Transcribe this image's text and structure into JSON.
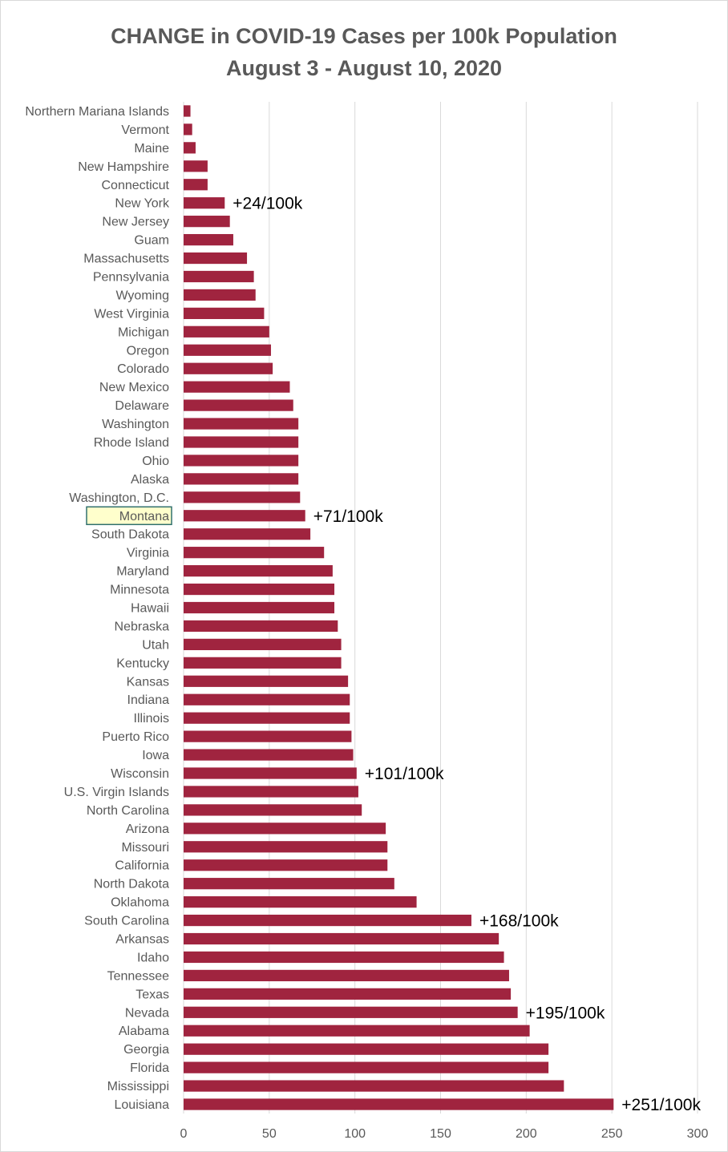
{
  "chart_data": {
    "type": "bar",
    "orientation": "horizontal",
    "title": "CHANGE in COVID-19 Cases per 100k Population",
    "subtitle": "August 3 - August 10, 2020",
    "xlabel": "",
    "ylabel": "",
    "xlim": [
      0,
      300
    ],
    "xticks": [
      0,
      50,
      100,
      150,
      200,
      250,
      300
    ],
    "grid": "vertical",
    "legend": "none",
    "bar_color": "#A0243F",
    "highlight_category": "Montana",
    "highlight_fill": "#FFFFCC",
    "highlight_border": "#31706E",
    "categories": [
      "Northern Mariana Islands",
      "Vermont",
      "Maine",
      "New Hampshire",
      "Connecticut",
      "New York",
      "New Jersey",
      "Guam",
      "Massachusetts",
      "Pennsylvania",
      "Wyoming",
      "West Virginia",
      "Michigan",
      "Oregon",
      "Colorado",
      "New Mexico",
      "Delaware",
      "Washington",
      "Rhode Island",
      "Ohio",
      "Alaska",
      "Washington, D.C.",
      "Montana",
      "South Dakota",
      "Virginia",
      "Maryland",
      "Minnesota",
      "Hawaii",
      "Nebraska",
      "Utah",
      "Kentucky",
      "Kansas",
      "Indiana",
      "Illinois",
      "Puerto Rico",
      "Iowa",
      "Wisconsin",
      "U.S. Virgin Islands",
      "North Carolina",
      "Arizona",
      "Missouri",
      "California",
      "North Dakota",
      "Oklahoma",
      "South Carolina",
      "Arkansas",
      "Idaho",
      "Tennessee",
      "Texas",
      "Nevada",
      "Alabama",
      "Georgia",
      "Florida",
      "Mississippi",
      "Louisiana"
    ],
    "values": [
      4,
      5,
      7,
      14,
      14,
      24,
      27,
      29,
      37,
      41,
      42,
      47,
      50,
      51,
      52,
      62,
      64,
      67,
      67,
      67,
      67,
      68,
      71,
      74,
      82,
      87,
      88,
      88,
      90,
      92,
      92,
      96,
      97,
      97,
      98,
      99,
      101,
      102,
      104,
      118,
      119,
      119,
      123,
      136,
      168,
      184,
      187,
      190,
      191,
      195,
      202,
      213,
      213,
      222,
      251
    ],
    "annotations": [
      {
        "category": "New York",
        "text": "+24/100k"
      },
      {
        "category": "Montana",
        "text": "+71/100k"
      },
      {
        "category": "Wisconsin",
        "text": "+101/100k"
      },
      {
        "category": "South Carolina",
        "text": "+168/100k"
      },
      {
        "category": "Nevada",
        "text": "+195/100k"
      },
      {
        "category": "Louisiana",
        "text": "+251/100k"
      }
    ]
  }
}
